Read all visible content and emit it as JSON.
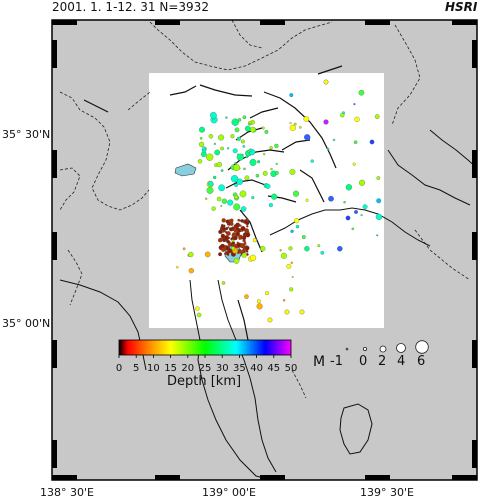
{
  "header": {
    "period_and_count": "2001. 1. 1-12. 31  N=3932",
    "organization": "HSRI"
  },
  "axes": {
    "latitude_labels": [
      "35° 30'N",
      "35° 00'N"
    ],
    "longitude_labels": [
      "138° 30'E",
      "139° 00'E",
      "139° 30'E"
    ]
  },
  "colorbar": {
    "ticks": [
      "0",
      "5",
      "10",
      "15",
      "20",
      "25",
      "30",
      "35",
      "40",
      "45",
      "50"
    ],
    "label": "Depth [km]",
    "gradient_colors": [
      "#000000",
      "#ff0000",
      "#ff8c00",
      "#ffff00",
      "#00ff00",
      "#00ffff",
      "#0000ff",
      "#ff00ff"
    ]
  },
  "magnitude_legend": {
    "title": "M",
    "values": [
      "-1",
      "0",
      "2",
      "4",
      "6"
    ]
  },
  "colors": {
    "sea": "#c8c8c8",
    "study_area": "#ffffff",
    "lake": "#87cedf"
  }
}
